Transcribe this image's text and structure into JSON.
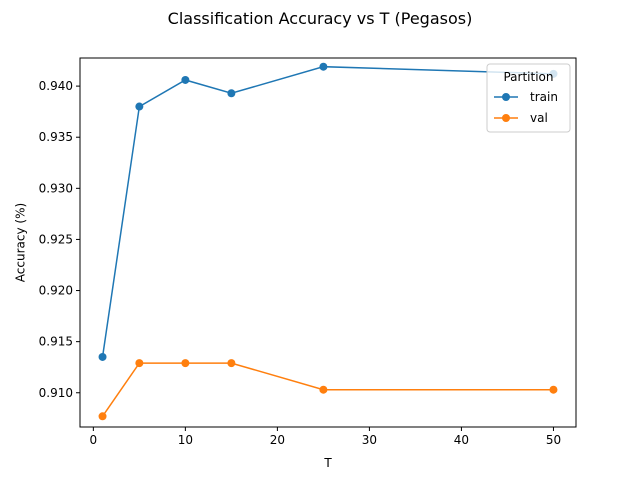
{
  "chart_data": {
    "type": "line",
    "title": "Classification Accuracy vs T (Pegasos)",
    "xlabel": "T",
    "ylabel": "Accuracy (%)",
    "x": [
      1,
      5,
      10,
      15,
      25,
      50
    ],
    "xlim": [
      -1.45,
      52.45
    ],
    "ylim": [
      0.90665,
      0.94275
    ],
    "xticks": [
      0,
      10,
      20,
      30,
      40,
      50
    ],
    "xtick_labels": [
      "0",
      "10",
      "20",
      "30",
      "40",
      "50"
    ],
    "yticks": [
      0.91,
      0.915,
      0.92,
      0.925,
      0.93,
      0.935,
      0.94
    ],
    "ytick_labels": [
      "0.910",
      "0.915",
      "0.920",
      "0.925",
      "0.930",
      "0.935",
      "0.940"
    ],
    "grid": false,
    "legend": {
      "title": "Partition",
      "placement": "top-right"
    },
    "series": [
      {
        "name": "train",
        "color": "#1f77b4",
        "values": [
          0.9135,
          0.938,
          0.9406,
          0.9393,
          0.9419,
          0.9412
        ]
      },
      {
        "name": "val",
        "color": "#ff7f0e",
        "values": [
          0.9077,
          0.9129,
          0.9129,
          0.9129,
          0.9103,
          0.9103
        ]
      }
    ]
  }
}
